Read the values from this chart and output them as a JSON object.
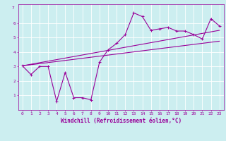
{
  "xlabel": "Windchill (Refroidissement éolien,°C)",
  "bg_color": "#cceef0",
  "line_color": "#990099",
  "grid_color": "#ffffff",
  "xlim": [
    -0.5,
    23.5
  ],
  "ylim": [
    0,
    7.3
  ],
  "xticks": [
    0,
    1,
    2,
    3,
    4,
    5,
    6,
    7,
    8,
    9,
    10,
    11,
    12,
    13,
    14,
    15,
    16,
    17,
    18,
    19,
    20,
    21,
    22,
    23
  ],
  "yticks": [
    1,
    2,
    3,
    4,
    5,
    6
  ],
  "series1_x": [
    0,
    1,
    2,
    3,
    4,
    5,
    6,
    7,
    8,
    9,
    10,
    11,
    12,
    13,
    14,
    15,
    16,
    17,
    18,
    19,
    20,
    21,
    22,
    23
  ],
  "series1_y": [
    3.05,
    2.45,
    3.0,
    3.0,
    0.6,
    2.6,
    0.85,
    0.85,
    0.7,
    3.3,
    4.15,
    4.6,
    5.2,
    6.7,
    6.45,
    5.5,
    5.6,
    5.7,
    5.45,
    5.45,
    5.2,
    4.9,
    6.3,
    5.8
  ],
  "series2_x": [
    0,
    23
  ],
  "series2_y": [
    3.05,
    5.5
  ],
  "series3_x": [
    0,
    23
  ],
  "series3_y": [
    3.05,
    4.75
  ],
  "marker_size": 2.5,
  "linewidth": 0.8,
  "tick_fontsize": 4.5,
  "xlabel_fontsize": 5.5
}
